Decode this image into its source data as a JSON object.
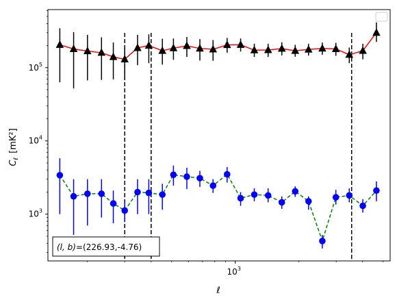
{
  "chart_data": {
    "type": "scatter",
    "xlabel": "ℓ",
    "ylabel_symbol": "C",
    "ylabel_subscript": "ℓ",
    "ylabel_unit": "[mK²]",
    "xscale": "log",
    "yscale": "log",
    "xlim": [
      130,
      5400
    ],
    "ylim": [
      230,
      620000
    ],
    "x_ticks": [
      {
        "value": 1000,
        "base": "10",
        "exp": "3"
      }
    ],
    "y_ticks": [
      {
        "value": 1000,
        "base": "10",
        "exp": "3"
      },
      {
        "value": 10000,
        "base": "10",
        "exp": "4"
      },
      {
        "value": 100000,
        "base": "10",
        "exp": "5"
      }
    ],
    "grid": false,
    "legend_placement": "top-right",
    "vertical_lines_x": [
      300,
      400,
      3550
    ],
    "annotation": {
      "text_left": "(l, b)",
      "text_right": "=(226.93,-4.76)",
      "placement": "bottom-left"
    },
    "x": [
      148,
      172,
      200,
      233,
      265,
      300,
      345,
      390,
      452,
      510,
      590,
      680,
      785,
      915,
      1060,
      1230,
      1430,
      1660,
      1920,
      2220,
      2580,
      2990,
      3460,
      4010,
      4650
    ],
    "series": [
      {
        "color": "#000000",
        "line_color": "#ff0000",
        "marker": "triangle",
        "line_style": "solid",
        "values": [
          205000,
          180000,
          168000,
          160000,
          140000,
          130000,
          186000,
          200000,
          170000,
          185000,
          198000,
          183000,
          178000,
          204000,
          205000,
          173000,
          174000,
          182000,
          170000,
          177000,
          183000,
          180000,
          150000,
          170000,
          300000
        ],
        "err_low": [
          63000,
          52000,
          67000,
          68000,
          69000,
          70000,
          108000,
          115000,
          110000,
          128000,
          140000,
          125000,
          124000,
          160000,
          166000,
          140000,
          140000,
          147000,
          141000,
          146000,
          150000,
          145000,
          115000,
          130000,
          225000
        ],
        "err_high": [
          345000,
          305000,
          280000,
          260000,
          220000,
          195000,
          280000,
          285000,
          248000,
          250000,
          262000,
          245000,
          238000,
          254000,
          250000,
          212000,
          212000,
          222000,
          205000,
          212000,
          220000,
          218000,
          188000,
          212000,
          415000
        ]
      },
      {
        "color": "#0000ff",
        "line_color": "#008000",
        "marker": "circle",
        "line_style": "dashed",
        "values": [
          3400,
          1750,
          1900,
          1900,
          1400,
          1120,
          2000,
          1950,
          1850,
          3450,
          3250,
          3100,
          2450,
          3500,
          1650,
          1850,
          1800,
          1450,
          2050,
          1500,
          430,
          1700,
          1800,
          1300,
          2100
        ],
        "err_low": [
          1000,
          520,
          700,
          900,
          750,
          780,
          1000,
          1000,
          1150,
          2450,
          2200,
          2350,
          1950,
          2700,
          1300,
          1500,
          1450,
          1180,
          1720,
          1150,
          340,
          1350,
          1450,
          1050,
          1500
        ],
        "err_high": [
          5800,
          3000,
          3000,
          3000,
          2100,
          1500,
          3000,
          3000,
          2600,
          4600,
          4300,
          3900,
          3000,
          4400,
          2000,
          2250,
          2250,
          1750,
          2400,
          1750,
          520,
          2150,
          2250,
          1600,
          2800
        ]
      }
    ]
  }
}
